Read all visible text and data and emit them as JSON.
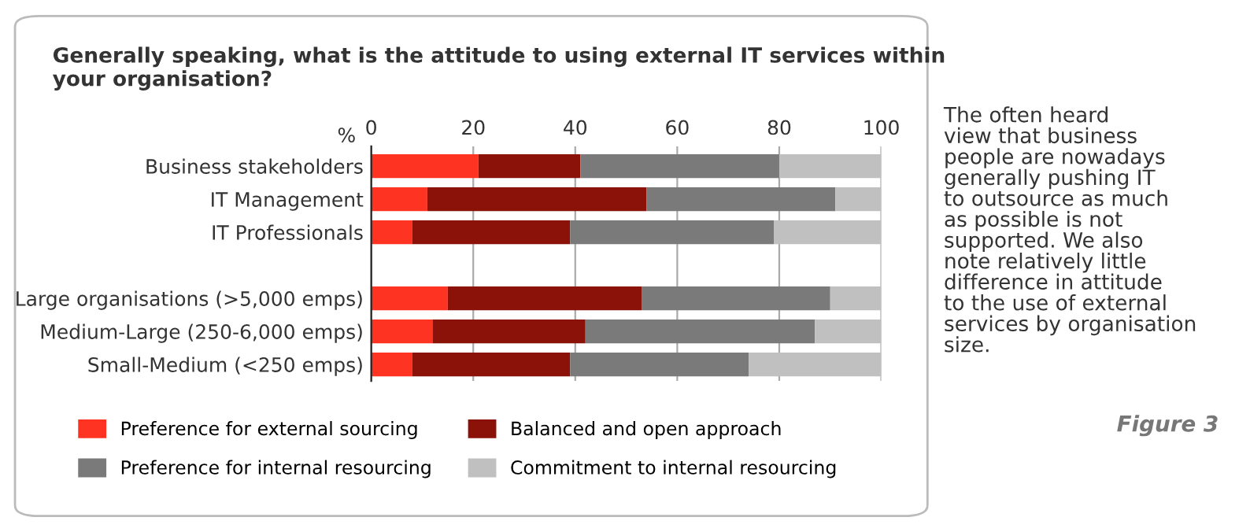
{
  "chart_data": {
    "type": "bar",
    "orientation": "horizontal",
    "stacked": true,
    "title": "Generally speaking, what is the attitude to using external IT services within\nyour organisation?",
    "xlabel": "%",
    "categories": [
      "Business stakeholders",
      "IT Management",
      "IT Professionals",
      null,
      "Large organisations (>5,000 emps)",
      "Medium-Large (250-6,000 emps)",
      "Small-Medium (<250 emps)"
    ],
    "series": [
      {
        "name": "Preference for external sourcing",
        "color": "#ff3322",
        "values": [
          21,
          11,
          8,
          null,
          15,
          12,
          8
        ]
      },
      {
        "name": "Balanced and open approach",
        "color": "#8b1208",
        "values": [
          20,
          43,
          31,
          null,
          38,
          30,
          31
        ]
      },
      {
        "name": "Preference for internal resourcing",
        "color": "#7a7a7a",
        "values": [
          39,
          37,
          40,
          null,
          37,
          45,
          35
        ]
      },
      {
        "name": "Commitment to internal resourcing",
        "color": "#c0c0c0",
        "values": [
          20,
          9,
          21,
          null,
          10,
          13,
          26
        ]
      }
    ],
    "xlim": [
      0,
      100
    ],
    "xticks": [
      0,
      20,
      40,
      60,
      80,
      100
    ],
    "grid": "x",
    "legend": "bottom",
    "annotations": [
      "The often heard\nview that business\npeople are nowadays\ngenerally pushing IT\nto outsource as much\nas possible is not\nsupported. We also\nnote relatively little\ndifference in attitude\nto the use of external\nservices by organisation\nsize.",
      "Figure 3"
    ]
  }
}
